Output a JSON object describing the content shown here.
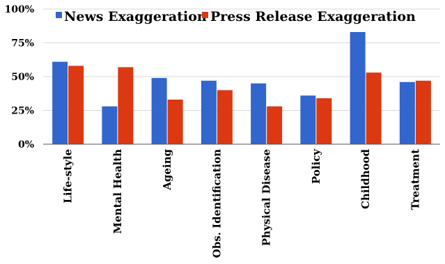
{
  "chart_data": {
    "type": "bar",
    "title": "",
    "xlabel": "",
    "ylabel": "",
    "categories": [
      "Life-style",
      "Mental Health",
      "Ageing",
      "Obs. Identification",
      "Physical Disease",
      "Policy",
      "Childhood",
      "Treatment"
    ],
    "series": [
      {
        "name": "News Exaggeration",
        "color": "#3366cc",
        "values": [
          61,
          28,
          49,
          47,
          45,
          36,
          83,
          46
        ]
      },
      {
        "name": "Press Release Exaggeration",
        "color": "#dc3912",
        "values": [
          58,
          57,
          33,
          40,
          28,
          34,
          53,
          47
        ]
      }
    ],
    "ylim": [
      0,
      100
    ],
    "yticks": [
      0,
      25,
      50,
      75,
      100
    ],
    "ytick_labels": [
      "0%",
      "25%",
      "50%",
      "75%",
      "100%"
    ],
    "grid": true,
    "legend_position": "top"
  }
}
